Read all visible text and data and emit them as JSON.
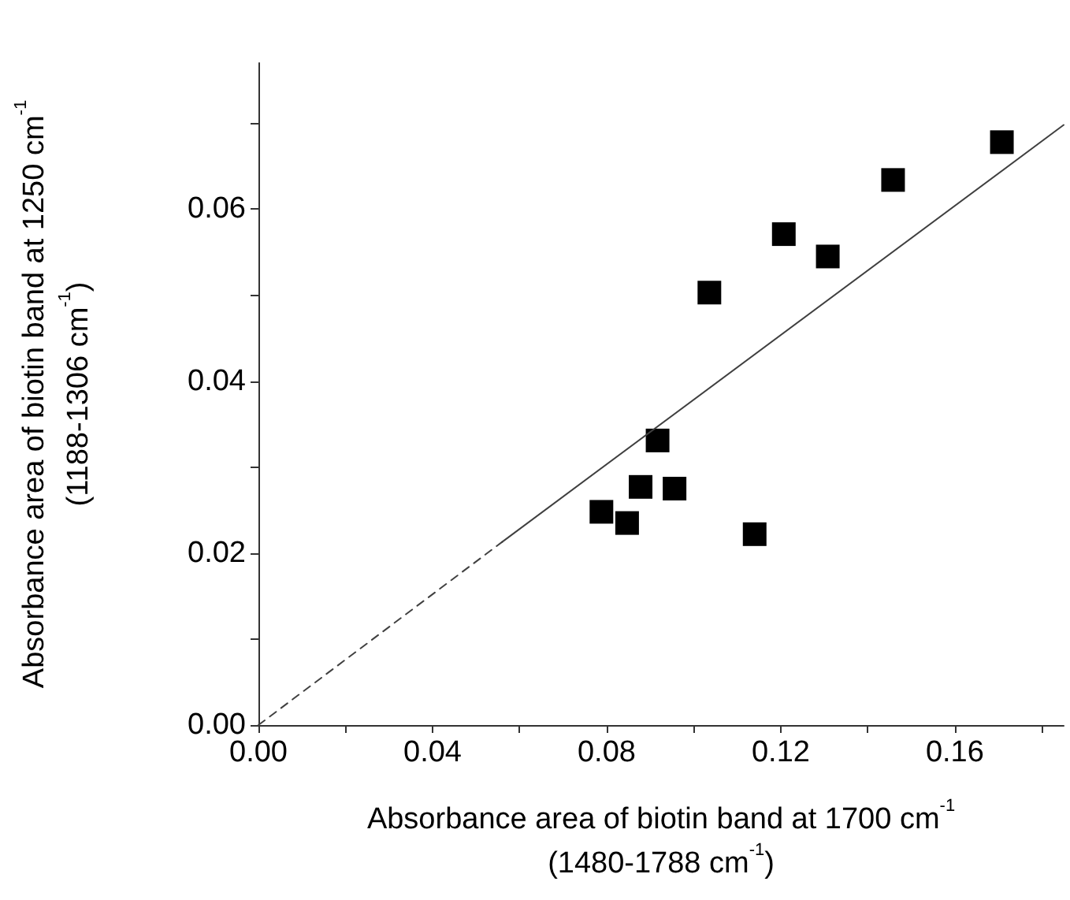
{
  "chart_data": {
    "type": "scatter",
    "xlabel": "Absorbance area of biotin band at 1700 cm$^{-1}$\n(1480-1788 cm$^{-1}$)",
    "ylabel": "Absorbance area of biotin band at 1250 cm$^{-1}$\n(1188-1306 cm$^{-1}$)",
    "xlim": [
      0,
      0.185
    ],
    "xticks": [
      {
        "value": 0,
        "label": "0.00"
      },
      {
        "value": 0.02,
        "label": null
      },
      {
        "value": 0.04,
        "label": "0.04"
      },
      {
        "value": 0.06,
        "label": null
      },
      {
        "value": 0.08,
        "label": "0.08"
      },
      {
        "value": 0.1,
        "label": null
      },
      {
        "value": 0.12,
        "label": "0.12"
      },
      {
        "value": 0.14,
        "label": null
      },
      {
        "value": 0.16,
        "label": "0.16"
      },
      {
        "value": 0.18,
        "label": null
      }
    ],
    "ylim": [
      0,
      0.077
    ],
    "yticks": [
      {
        "value": 0,
        "label": "0.00"
      },
      {
        "value": 0.01,
        "label": null
      },
      {
        "value": 0.02,
        "label": "0.02"
      },
      {
        "value": 0.03,
        "label": null
      },
      {
        "value": 0.04,
        "label": "0.04"
      },
      {
        "value": 0.05,
        "label": null
      },
      {
        "value": 0.06,
        "label": "0.06"
      },
      {
        "value": 0.07,
        "label": null
      }
    ],
    "series": [
      {
        "marker": "square",
        "color": "#000000",
        "x": [
          0.0788,
          0.0847,
          0.0878,
          0.0917,
          0.0956,
          0.1036,
          0.114,
          0.1207,
          0.1308,
          0.1458,
          0.1708
        ],
        "values": [
          0.0248,
          0.0235,
          0.0277,
          0.0331,
          0.0275,
          0.0503,
          0.0222,
          0.0571,
          0.0545,
          0.0634,
          0.0678
        ]
      },
      {
        "type": "line",
        "marker": "none",
        "color": "#404040",
        "line_style": "dashed",
        "x": [
          0,
          0.056
        ],
        "values": [
          0,
          0.0213
        ]
      },
      {
        "type": "line",
        "marker": "none",
        "color": "#404040",
        "line_style": "solid",
        "x": [
          0.056,
          0.185
        ],
        "values": [
          0.0213,
          0.0698
        ]
      }
    ]
  }
}
